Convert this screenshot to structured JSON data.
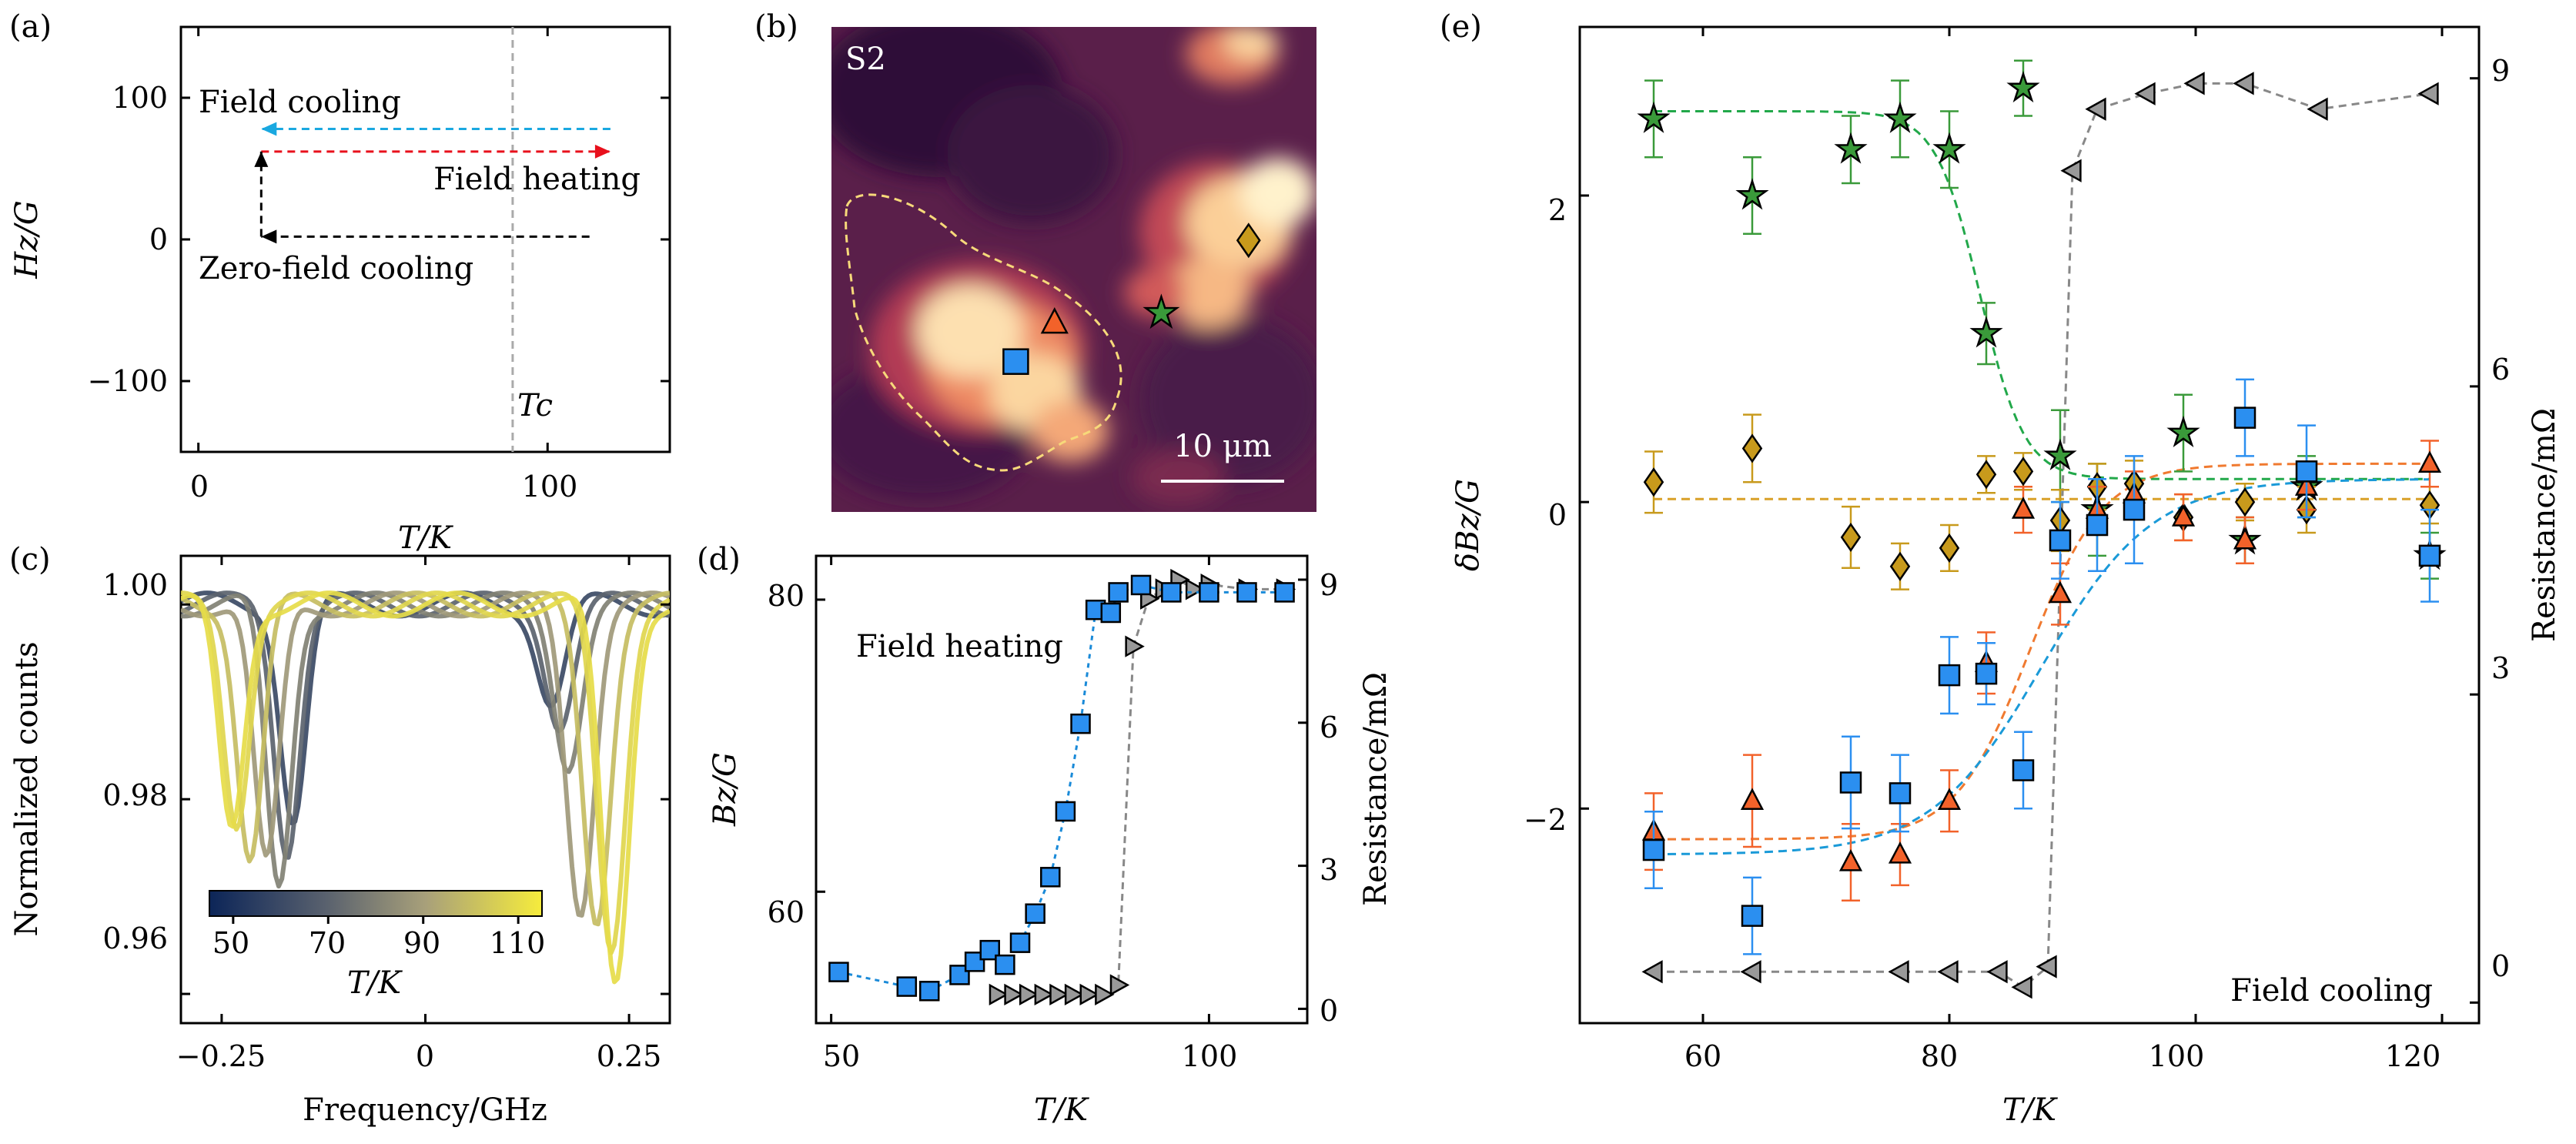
{
  "panels": {
    "a": {
      "label": "(a)",
      "xlabel": "T/K",
      "ylabel": "Hz/G",
      "xticks": [
        "0",
        "100"
      ],
      "yticks": [
        "100",
        "0",
        "−100"
      ],
      "arrows": [
        {
          "label": "Field cooling",
          "color": "#1aa8e0"
        },
        {
          "label": "Field heating",
          "color": "#e8101c"
        },
        {
          "label": "Zero-field cooling",
          "color": "#000000"
        }
      ],
      "tc_label": "Tc"
    },
    "b": {
      "label": "(b)",
      "sample": "S2",
      "scalebar": "10 μm"
    },
    "c": {
      "label": "(c)",
      "xlabel": "Frequency/GHz",
      "ylabel": "Normalized counts",
      "xticks": [
        "−0.25",
        "0",
        "0.25"
      ],
      "yticks": [
        "1.00",
        "0.98",
        "0.96"
      ],
      "colorbar": {
        "ticks": [
          "50",
          "70",
          "90",
          "110"
        ],
        "label": "T/K"
      }
    },
    "d": {
      "label": "(d)",
      "xlabel": "T/K",
      "ylabel": "Bz/G",
      "y2label": "Resistance/mΩ",
      "xticks": [
        "50",
        "100"
      ],
      "yticks": [
        "80",
        "60"
      ],
      "y2ticks": [
        "9",
        "6",
        "3",
        "0"
      ],
      "annotation": "Field heating"
    },
    "e": {
      "label": "(e)",
      "xlabel": "T/K",
      "ylabel": "δBz/G",
      "y2label": "Resistance/mΩ",
      "xticks": [
        "60",
        "80",
        "100",
        "120"
      ],
      "yticks": [
        "2",
        "0",
        "−2"
      ],
      "y2ticks": [
        "9",
        "6",
        "3",
        "0"
      ],
      "annotation": "Field cooling"
    }
  },
  "chart_data": [
    {
      "type": "line",
      "panel": "a",
      "xlim": [
        -5,
        135
      ],
      "ylim": [
        -150,
        150
      ],
      "tc": 90,
      "arrows": [
        {
          "name": "Field cooling",
          "from": [
            118,
            78
          ],
          "to": [
            18,
            78
          ]
        },
        {
          "name": "Field heating",
          "from": [
            18,
            62
          ],
          "to": [
            118,
            62
          ]
        },
        {
          "name": "Zero-field cooling",
          "from": [
            112,
            2
          ],
          "to": [
            18,
            2
          ]
        },
        {
          "name": "Zero-field cooling step",
          "from": [
            18,
            2
          ],
          "to": [
            18,
            62
          ]
        }
      ]
    },
    {
      "type": "heatmap",
      "panel": "b",
      "markers": [
        {
          "shape": "square",
          "color": "#2b8ff0",
          "x": 0.38,
          "y": 0.69
        },
        {
          "shape": "triangle",
          "color": "#f2622a",
          "x": 0.46,
          "y": 0.61
        },
        {
          "shape": "star",
          "color": "#3a9a3a",
          "x": 0.68,
          "y": 0.59
        },
        {
          "shape": "diamond",
          "color": "#c89a1c",
          "x": 0.86,
          "y": 0.44
        }
      ]
    },
    {
      "type": "line",
      "panel": "c",
      "xlim": [
        -0.3,
        0.3
      ],
      "ylim": [
        0.957,
        1.005
      ],
      "temperatures": [
        110,
        108,
        100,
        88,
        80,
        70,
        60
      ],
      "left_dip_x": [
        -0.238,
        -0.232,
        -0.215,
        -0.195,
        -0.18,
        -0.17,
        -0.162
      ],
      "left_dip_depth": [
        0.023,
        0.022,
        0.026,
        0.027,
        0.029,
        0.025,
        0.022
      ],
      "right_dip_x": [
        0.233,
        0.228,
        0.21,
        0.19,
        0.175,
        0.165,
        0.155
      ],
      "right_dip_depth": [
        0.039,
        0.035,
        0.032,
        0.031,
        0.016,
        0.012,
        0.01
      ],
      "colorbar_range": [
        45,
        115
      ]
    },
    {
      "type": "scatter",
      "panel": "d",
      "xlim": [
        48,
        113
      ],
      "ylim": [
        51,
        83
      ],
      "y2lim": [
        -0.3,
        9.5
      ],
      "series": [
        {
          "name": "Bz",
          "x": [
            51,
            60,
            63,
            67,
            69,
            71,
            73,
            75,
            77,
            79,
            81,
            83,
            85,
            87,
            88,
            91,
            95,
            100,
            105,
            110
          ],
          "y": [
            54.5,
            53.5,
            53.2,
            54.3,
            55.2,
            56.0,
            55.0,
            56.5,
            58.5,
            61.0,
            65.5,
            71.5,
            79.3,
            79.1,
            80.5,
            81.0,
            80.5,
            80.5,
            80.5,
            80.5
          ]
        },
        {
          "name": "Resistance",
          "x": [
            72,
            74,
            76,
            78,
            80,
            82,
            84,
            86,
            88,
            90,
            92,
            94,
            96,
            98,
            100,
            105,
            110
          ],
          "y2": [
            0.3,
            0.3,
            0.3,
            0.3,
            0.3,
            0.3,
            0.3,
            0.3,
            0.5,
            7.6,
            8.6,
            8.8,
            9.0,
            8.8,
            8.9,
            8.8,
            8.8
          ]
        }
      ]
    },
    {
      "type": "scatter",
      "panel": "e",
      "xlim": [
        50,
        123
      ],
      "ylim": [
        -3.4,
        3.1
      ],
      "y2lim": [
        -0.2,
        9.5
      ],
      "series": [
        {
          "name": "star",
          "color": "#3a9a3a",
          "x": [
            56,
            64,
            72,
            76,
            80,
            83,
            86,
            89,
            92,
            99,
            104,
            109,
            119
          ],
          "y": [
            2.5,
            2.0,
            2.3,
            2.5,
            2.3,
            1.1,
            2.7,
            0.3,
            -0.05,
            0.45,
            -0.25,
            0.1,
            -0.35
          ],
          "err": [
            0.25,
            0.25,
            0.22,
            0.25,
            0.25,
            0.2,
            0.18,
            0.3,
            0.3,
            0.25,
            0.15,
            0.2,
            0.15
          ]
        },
        {
          "name": "diamond",
          "color": "#c89a1c",
          "x": [
            56,
            64,
            72,
            76,
            80,
            83,
            86,
            89,
            92,
            95,
            99,
            104,
            109,
            119
          ],
          "y": [
            0.13,
            0.35,
            -0.23,
            -0.42,
            -0.3,
            0.18,
            0.2,
            -0.12,
            0.1,
            0.12,
            -0.1,
            0.0,
            -0.05,
            -0.02
          ],
          "err": [
            0.2,
            0.22,
            0.2,
            0.15,
            0.15,
            0.12,
            0.12,
            0.2,
            0.15,
            0.15,
            0.15,
            0.12,
            0.15,
            0.12
          ]
        },
        {
          "name": "triangle",
          "color": "#f2622a",
          "x": [
            56,
            64,
            72,
            76,
            80,
            83,
            86,
            89,
            92,
            95,
            99,
            104,
            109,
            119
          ],
          "y": [
            -2.15,
            -1.95,
            -2.35,
            -2.3,
            -1.95,
            -1.05,
            -0.05,
            -0.6,
            -0.05,
            0.05,
            -0.1,
            -0.25,
            0.1,
            0.25
          ],
          "err": [
            0.25,
            0.3,
            0.25,
            0.2,
            0.2,
            0.2,
            0.15,
            0.2,
            0.15,
            0.15,
            0.15,
            0.15,
            0.15,
            0.15
          ]
        },
        {
          "name": "square",
          "color": "#2b8ff0",
          "x": [
            56,
            64,
            72,
            76,
            80,
            83,
            86,
            89,
            92,
            95,
            104,
            109,
            119
          ],
          "y": [
            -2.27,
            -2.7,
            -1.83,
            -1.9,
            -1.13,
            -1.12,
            -1.75,
            -0.25,
            -0.15,
            -0.05,
            0.55,
            0.2,
            -0.35
          ],
          "err": [
            0.25,
            0.25,
            0.3,
            0.25,
            0.25,
            0.2,
            0.25,
            0.25,
            0.3,
            0.35,
            0.25,
            0.3,
            0.3
          ]
        },
        {
          "name": "Resistance",
          "color": "#888888",
          "x": [
            56,
            64,
            76,
            80,
            84,
            86,
            88,
            90,
            92,
            96,
            100,
            104,
            110,
            119
          ],
          "y2": [
            0.3,
            0.3,
            0.3,
            0.3,
            0.3,
            0.15,
            0.35,
            8.1,
            8.7,
            8.85,
            8.95,
            8.95,
            8.7,
            8.85
          ]
        }
      ],
      "fits": [
        {
          "name": "star fit",
          "color": "#22a84a",
          "a": 2.55,
          "b": 0.15,
          "t0": 82.5,
          "w": 1.8
        },
        {
          "name": "triangle fit",
          "color": "#f07a30",
          "a": -2.2,
          "b": 0.25,
          "t0": 86.5,
          "w": 3.0
        },
        {
          "name": "square fit",
          "color": "#1a9ad8",
          "a": -2.3,
          "b": 0.15,
          "t0": 87.5,
          "w": 4.5
        },
        {
          "name": "diamond fit",
          "color": "#d9a028",
          "a": 0.02,
          "b": 0.02,
          "t0": 80,
          "w": 5
        }
      ]
    }
  ]
}
